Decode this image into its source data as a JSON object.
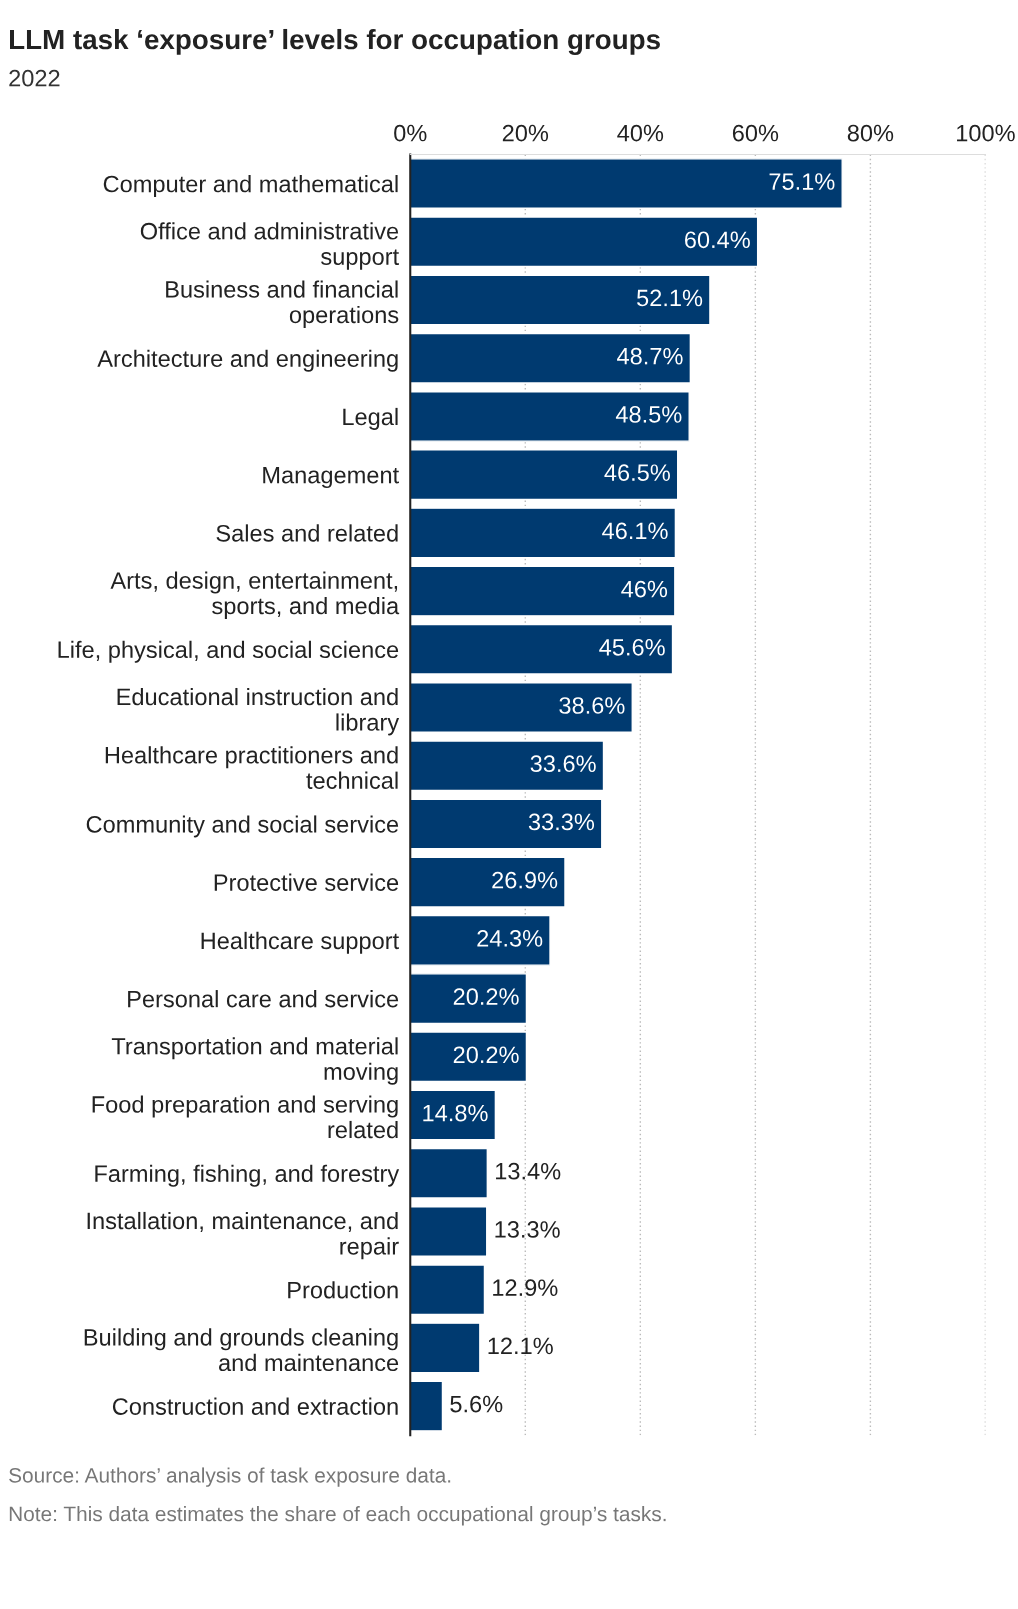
{
  "chart_data": {
    "type": "bar",
    "orientation": "horizontal",
    "title": "LLM task ‘exposure’ levels for occupation groups",
    "subtitle": "2022",
    "categories": [
      "Computer and mathematical",
      "Office and administrative\nsupport",
      "Business and financial\noperations",
      "Architecture and engineering",
      "Legal",
      "Management",
      "Sales and related",
      "Arts, design, entertainment,\nsports, and media",
      "Life, physical, and social science",
      "Educational instruction and\nlibrary",
      "Healthcare practitioners and\ntechnical",
      "Community and social service",
      "Protective service",
      "Healthcare support",
      "Personal care and service",
      "Transportation and material\nmoving",
      "Food preparation and serving\nrelated",
      "Farming, fishing, and forestry",
      "Installation, maintenance, and\nrepair",
      "Production",
      "Building and grounds cleaning\nand maintenance",
      "Construction and extraction"
    ],
    "values": [
      75.1,
      60.4,
      52.1,
      48.7,
      48.5,
      46.5,
      46.1,
      46,
      45.6,
      38.6,
      33.6,
      33.3,
      26.9,
      24.3,
      20.2,
      20.2,
      14.8,
      13.4,
      13.3,
      12.9,
      12.1,
      5.6
    ],
    "color": "#003a70",
    "value_labels": [
      "75.1%",
      "60.4%",
      "52.1%",
      "48.7%",
      "48.5%",
      "46.5%",
      "46.1%",
      "46%",
      "45.6%",
      "38.6%",
      "33.6%",
      "33.3%",
      "26.9%",
      "24.3%",
      "20.2%",
      "20.2%",
      "14.8%",
      "13.4%",
      "13.3%",
      "12.9%",
      "12.1%",
      "5.6%"
    ],
    "xlim": [
      0,
      100
    ],
    "xticks": [
      {
        "value": 0,
        "label": "0%"
      },
      {
        "value": 20,
        "label": "20%"
      },
      {
        "value": 40,
        "label": "40%"
      },
      {
        "value": 60,
        "label": "60%"
      },
      {
        "value": 80,
        "label": "80%"
      },
      {
        "value": 100,
        "label": "100%"
      }
    ],
    "grid": "x",
    "legend": false,
    "annotations": [
      "Source: Authors’ analysis of task exposure data.",
      "Note: This data estimates the share of each occupational group’s tasks."
    ]
  }
}
